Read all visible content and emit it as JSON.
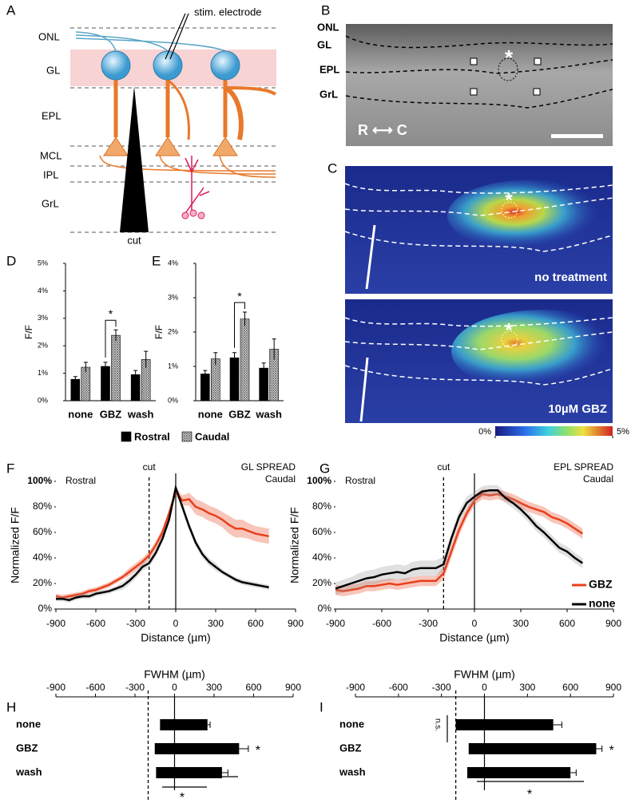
{
  "panel_labels": [
    "A",
    "B",
    "C",
    "D",
    "E",
    "F",
    "G",
    "H",
    "I"
  ],
  "diagram": {
    "layers": [
      "ONL",
      "GL",
      "EPL",
      "MCL",
      "IPL",
      "GrL"
    ],
    "electrode_label": "stim. electrode",
    "cut_label": "cut"
  },
  "image_b": {
    "layers": [
      "ONL",
      "GL",
      "EPL",
      "GrL"
    ],
    "orientation": "R ⟷ C",
    "marker": "*"
  },
  "image_c": {
    "conditions": [
      "no treatment",
      "10µM GBZ"
    ],
    "marker": "*",
    "colorbar_lim": [
      0,
      5
    ],
    "colorbar_ticks": [
      {
        "value": 0,
        "label": "0%"
      },
      {
        "value": 5,
        "label": "5%"
      }
    ]
  },
  "chart_data": [
    {
      "type": "bar",
      "ylabel": "F/F",
      "categories": [
        "none",
        "GBZ",
        "wash"
      ],
      "series": [
        {
          "name": "Rostral",
          "color": "#000000",
          "values": [
            0.78,
            1.25,
            0.95
          ],
          "errors": [
            0.1,
            0.15,
            0.15
          ]
        },
        {
          "name": "Caudal",
          "color": "#999999",
          "pattern": "crosshatch",
          "values": [
            1.22,
            2.38,
            1.5
          ],
          "errors": [
            0.18,
            0.2,
            0.3
          ]
        }
      ],
      "ylim": [
        0,
        5
      ],
      "yticks": [
        {
          "value": 0,
          "label": "0%"
        },
        {
          "value": 1,
          "label": "1%"
        },
        {
          "value": 2,
          "label": "2%"
        },
        {
          "value": 3,
          "label": "3%"
        },
        {
          "value": 4,
          "label": "4%"
        },
        {
          "value": 5,
          "label": "5%"
        }
      ],
      "annotation": "*"
    },
    {
      "type": "bar",
      "ylabel": "F/F",
      "categories": [
        "none",
        "GBZ",
        "wash"
      ],
      "series": [
        {
          "color": "#000000",
          "values": [
            0.78,
            1.25,
            0.95
          ],
          "errors": [
            0.1,
            0.15,
            0.15
          ]
        },
        {
          "color": "#999999",
          "pattern": "crosshatch",
          "values": [
            1.22,
            2.38,
            1.5
          ],
          "errors": [
            0.18,
            0.2,
            0.3
          ]
        }
      ],
      "ylim": [
        0,
        4
      ],
      "yticks": [
        {
          "value": 0,
          "label": "0%"
        },
        {
          "value": 1,
          "label": "1%"
        },
        {
          "value": 2,
          "label": "2%"
        },
        {
          "value": 3,
          "label": "3%"
        },
        {
          "value": 4,
          "label": "4%"
        }
      ],
      "annotation": "*"
    },
    {
      "type": "line",
      "xlabel": "Distance (µm)",
      "ylabel": "Normalized  F/F",
      "x": [
        -900,
        -850,
        -800,
        -750,
        -700,
        -650,
        -600,
        -550,
        -500,
        -450,
        -400,
        -350,
        -300,
        -250,
        -200,
        -150,
        -100,
        -50,
        0,
        50,
        100,
        150,
        200,
        250,
        300,
        350,
        400,
        450,
        500,
        550,
        600,
        650,
        700
      ],
      "series": [
        {
          "color": "#e8401c",
          "values": [
            10,
            9,
            10,
            11,
            12,
            14,
            15,
            17,
            19,
            22,
            25,
            29,
            33,
            37,
            42,
            50,
            60,
            75,
            92,
            85,
            86,
            80,
            78,
            75,
            73,
            70,
            66,
            63,
            63,
            61,
            59,
            58,
            57
          ],
          "errors": [
            2,
            2,
            2,
            2,
            2,
            2,
            2,
            2,
            2,
            2,
            2,
            3,
            3,
            3,
            3,
            3,
            3,
            3,
            3,
            4,
            5,
            6,
            6,
            6,
            6,
            6,
            7,
            7,
            7,
            6,
            6,
            6,
            6
          ]
        },
        {
          "color": "#000000",
          "values": [
            8,
            8,
            7,
            9,
            10,
            10,
            12,
            13,
            14,
            16,
            18,
            22,
            27,
            33,
            36,
            44,
            55,
            70,
            95,
            80,
            65,
            52,
            43,
            37,
            33,
            29,
            26,
            23,
            21,
            20,
            19,
            18,
            17
          ],
          "errors": [
            2,
            2,
            2,
            2,
            2,
            2,
            2,
            2,
            2,
            2,
            3,
            3,
            3,
            3,
            3,
            3,
            3,
            3,
            3,
            3,
            3,
            3,
            3,
            3,
            3,
            2,
            2,
            2,
            2,
            2,
            2,
            2,
            2
          ]
        }
      ],
      "xlim": [
        -900,
        900
      ],
      "xticks": [
        -900,
        -600,
        -300,
        0,
        300,
        600,
        900
      ],
      "ylim": [
        0,
        100
      ],
      "yticks": [
        {
          "value": 0,
          "label": "0%"
        },
        {
          "value": 20,
          "label": "20%"
        },
        {
          "value": 40,
          "label": "40%"
        },
        {
          "value": 60,
          "label": "60%"
        },
        {
          "value": 80,
          "label": "80%"
        },
        {
          "value": 100,
          "label": "100%"
        }
      ],
      "cut_x": -200,
      "annotations": [
        "cut",
        "Rostral",
        "GL SPREAD",
        "Caudal"
      ]
    },
    {
      "type": "line",
      "xlabel": "Distance (µm)",
      "ylabel": "Normalized  F/F",
      "x": [
        -900,
        -850,
        -800,
        -750,
        -700,
        -650,
        -600,
        -550,
        -500,
        -450,
        -400,
        -350,
        -300,
        -250,
        -200,
        -150,
        -100,
        -50,
        0,
        50,
        100,
        150,
        200,
        250,
        300,
        350,
        400,
        450,
        500,
        550,
        600,
        650,
        700
      ],
      "series": [
        {
          "name": "GBZ",
          "color": "#e8401c",
          "values": [
            15,
            14,
            15,
            16,
            18,
            18,
            19,
            20,
            19,
            20,
            21,
            22,
            22,
            22,
            28,
            45,
            62,
            75,
            85,
            90,
            89,
            90,
            88,
            86,
            83,
            80,
            78,
            76,
            72,
            70,
            67,
            63,
            59
          ],
          "errors": [
            4,
            4,
            4,
            4,
            4,
            4,
            4,
            4,
            4,
            4,
            4,
            4,
            4,
            4,
            5,
            5,
            5,
            4,
            4,
            4,
            4,
            4,
            4,
            4,
            4,
            4,
            4,
            4,
            4,
            4,
            4,
            4,
            4
          ]
        },
        {
          "name": "none",
          "color": "#000000",
          "values": [
            16,
            18,
            20,
            22,
            24,
            25,
            27,
            28,
            29,
            28,
            31,
            32,
            32,
            32,
            35,
            55,
            72,
            83,
            88,
            92,
            93,
            93,
            87,
            83,
            78,
            72,
            65,
            60,
            54,
            48,
            45,
            40,
            36
          ],
          "errors": [
            5,
            5,
            5,
            6,
            6,
            6,
            6,
            6,
            6,
            6,
            6,
            6,
            6,
            6,
            6,
            5,
            5,
            5,
            4,
            4,
            4,
            4,
            4,
            4,
            4,
            4,
            4,
            4,
            4,
            4,
            4,
            4,
            4
          ]
        }
      ],
      "xlim": [
        -900,
        900
      ],
      "xticks": [
        -900,
        -600,
        -300,
        0,
        300,
        600,
        900
      ],
      "ylim": [
        0,
        100
      ],
      "yticks": [
        {
          "value": 0,
          "label": "0%"
        },
        {
          "value": 20,
          "label": "20%"
        },
        {
          "value": 40,
          "label": "40%"
        },
        {
          "value": 60,
          "label": "60%"
        },
        {
          "value": 80,
          "label": "80%"
        },
        {
          "value": 100,
          "label": "100%"
        }
      ],
      "cut_x": -200,
      "annotations": [
        "cut",
        "Rostral",
        "EPL SPREAD",
        "Caudal"
      ],
      "legend": "right"
    },
    {
      "type": "range_bar",
      "xlabel": "FWHM (µm)",
      "categories": [
        "none",
        "GBZ",
        "wash"
      ],
      "starts": [
        -110,
        -150,
        -140
      ],
      "ends": [
        250,
        490,
        360
      ],
      "errors": [
        20,
        70,
        45
      ],
      "xlim": [
        -900,
        900
      ],
      "xticks": [
        -900,
        -600,
        -300,
        0,
        300,
        600,
        900
      ],
      "cut_x": -200,
      "annotations": [
        "*",
        "*"
      ]
    },
    {
      "type": "range_bar",
      "xlabel": "FWHM (µm)",
      "categories": [
        "none",
        "GBZ",
        "wash"
      ],
      "starts": [
        -200,
        -110,
        -120
      ],
      "ends": [
        480,
        780,
        600
      ],
      "errors": [
        60,
        40,
        40
      ],
      "xlim": [
        -900,
        900
      ],
      "xticks": [
        -900,
        -600,
        -300,
        0,
        300,
        600,
        900
      ],
      "cut_x": -200,
      "annotations": [
        "n.s.",
        "*",
        "*"
      ]
    }
  ]
}
